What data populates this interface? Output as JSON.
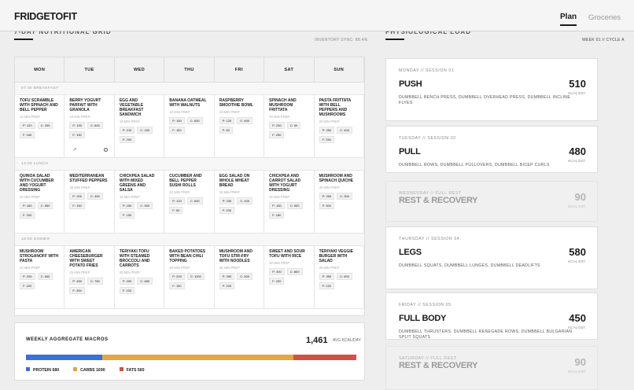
{
  "header": {
    "logo": "FRIDGETOFIT",
    "nav": [
      "Plan",
      "Groceries"
    ]
  },
  "grid_section": {
    "title": "7-DAY NUTRITIONAL GRID",
    "sync": "INVENTORY SYNC: 88.4%"
  },
  "days": [
    "MON",
    "TUE",
    "WED",
    "THU",
    "FRI",
    "SAT",
    "SUN"
  ],
  "meals": [
    {
      "label": "07:00 BREAKFAST",
      "cells": [
        {
          "name": "TOFU SCRAMBLE WITH SPINACH AND BELL PEPPER",
          "prep": "15 MIN PREP",
          "pills": [
            "P: 120",
            "C: 200",
            "F: 180"
          ]
        },
        {
          "name": "BERRY YOGURT PARFAIT WITH GRANOLA",
          "prep": "10 MIN PREP",
          "pills": [
            "P: 150",
            "C: 600",
            "F: 150"
          ]
        },
        {
          "name": "EGG AND VEGETABLE BREAKFAST SANDWICH",
          "prep": "15 MIN PREP",
          "pills": [
            "P: 210",
            "C: 200",
            "F: 200"
          ]
        },
        {
          "name": "BANANA OATMEAL WITH WALNUTS",
          "prep": "10 MIN PREP",
          "pills": [
            "P: 150",
            "C: 600",
            "F: 100"
          ]
        },
        {
          "name": "RASPBERRY SMOOTHIE BOWL",
          "prep": "10 MIN PREP",
          "pills": [
            "P: 120",
            "C: 600",
            "F: 50"
          ]
        },
        {
          "name": "SPINACH AND MUSHROOM FRITTATA",
          "prep": "20 MIN PREP",
          "pills": [
            "P: 250",
            "C: 90",
            "F: 250"
          ]
        },
        {
          "name": "PASTA FRITTATA WITH BELL PEPPERS AND MUSHROOMS",
          "prep": "20 MIN PREP",
          "pills": [
            "P: 250",
            "C: 400",
            "F: 250"
          ]
        }
      ]
    },
    {
      "label": "12:00 LUNCH",
      "cells": [
        {
          "name": "QUINOA SALAD WITH CUCUMBER AND YOGURT DRESSING",
          "prep": "20 MIN PREP",
          "pills": [
            "P: 160",
            "C: 550",
            "F: 200"
          ]
        },
        {
          "name": "MEDITERRANEAN STUFFED PEPPERS",
          "prep": "30 MIN PREP",
          "pills": [
            "P: 200",
            "C: 400",
            "F: 150"
          ]
        },
        {
          "name": "CHICKPEA SALAD WITH MIXED GREENS AND SALSA",
          "prep": "15 MIN PREP",
          "pills": [
            "P: 150",
            "C: 500",
            "F: 150"
          ]
        },
        {
          "name": "CUCUMBER AND BELL PEPPER SUSHI ROLLS",
          "prep": "20 MIN PREP",
          "pills": [
            "P: 120",
            "C: 600",
            "F: 50"
          ]
        },
        {
          "name": "EGG SALAD ON WHOLE WHEAT BREAD",
          "prep": "15 MIN PREP",
          "pills": [
            "P: 230",
            "C: 400",
            "F: 200"
          ]
        },
        {
          "name": "CHICKPEA AND CARROT SALAD WITH YOGURT DRESSING",
          "prep": "15 MIN PREP",
          "pills": [
            "P: 150",
            "C: 500",
            "F: 180"
          ]
        },
        {
          "name": "MUSHROOM AND SPINACH QUICHE",
          "prep": "40 MIN PREP",
          "pills": [
            "P: 250",
            "C: 300",
            "F: 300"
          ]
        }
      ]
    },
    {
      "label": "18:00 DINNER",
      "cells": [
        {
          "name": "MUSHROOM STROGANOFF WITH PASTA",
          "prep": "30 MIN PREP",
          "pills": [
            "P: 200",
            "C: 600",
            "F: 220"
          ]
        },
        {
          "name": "AMERICAN CHEESEBURGER WITH SWEET POTATO FRIES",
          "prep": "25 MIN PREP",
          "pills": [
            "P: 450",
            "C: 750",
            "F: 300"
          ]
        },
        {
          "name": "TERIYAKI TOFU WITH STEAMED BROCCOLI AND CARROTS",
          "prep": "25 MIN PREP",
          "pills": [
            "P: 200",
            "C: 650",
            "F: 220"
          ]
        },
        {
          "name": "BAKED POTATOES WITH BEAN CHILI TOPPING",
          "prep": "40 MIN PREP",
          "pills": [
            "P: 200",
            "C: 1000",
            "F: 150"
          ]
        },
        {
          "name": "MUSHROOM AND TOFU STIR-FRY WITH NOODLES",
          "prep": "25 MIN PREP",
          "pills": [
            "P: 300",
            "C: 600",
            "F: 200"
          ]
        },
        {
          "name": "SWEET AND SOUR TOFU WITH RICE",
          "prep": "30 MIN PREP",
          "pills": [
            "P: 300",
            "C: 800",
            "F: 200"
          ]
        },
        {
          "name": "TERIYAKI VEGGIE BURGER WITH SALAD",
          "prep": "30 MIN PREP",
          "pills": [
            "P: 350",
            "C: 800",
            "F: 220"
          ]
        }
      ]
    }
  ],
  "macros": {
    "title": "WEEKLY AGGREGATE MACROS",
    "avg_value": "1,461",
    "avg_label": "AVG KCAL/DAY",
    "legend": [
      {
        "label": "PROTEIN 680",
        "color": "#3b6fd9"
      },
      {
        "label": "CARBS 1690",
        "color": "#e1a83f"
      },
      {
        "label": "FATS 560",
        "color": "#d64e48"
      }
    ],
    "fractions": [
      0.23,
      0.58,
      0.19
    ]
  },
  "phys_section": {
    "title": "PHYSIOLOGICAL LOAD",
    "week": "WEEK 01 // CYCLE A"
  },
  "sessions": [
    {
      "tag": "MONDAY // SESSION 01",
      "name": "PUSH",
      "desc": "DUMBBELL BENCH PRESS, DUMBBELL OVERHEAD PRESS, DUMBBELL INCLINE FLYES",
      "kcal": "510",
      "kcal_label": "KCAL EST."
    },
    {
      "tag": "TUESDAY // SESSION 02",
      "name": "PULL",
      "desc": "DUMBBELL ROWS, DUMBBELL PULLOVERS, DUMBBELL BICEP CURLS",
      "kcal": "480",
      "kcal_label": "KCAL EST."
    },
    {
      "tag": "WEDNESDAY // FULL REST",
      "name": "REST & RECOVERY",
      "desc": "",
      "kcal": "90",
      "kcal_label": "KCAL EST."
    },
    {
      "tag": "THURSDAY // SESSION 04",
      "name": "LEGS",
      "desc": "DUMBBELL SQUATS, DUMBBELL LUNGES, DUMBBELL DEADLIFTS",
      "kcal": "580",
      "kcal_label": "KCAL EST."
    },
    {
      "tag": "FRIDAY // SESSION 05",
      "name": "FULL BODY",
      "desc": "DUMBBELL THRUSTERS, DUMBBELL RENEGADE ROWS, DUMBBELL BULGARIAN SPLIT SQUATS",
      "kcal": "450",
      "kcal_label": "KCAL EST."
    },
    {
      "tag": "SATURDAY // FULL REST",
      "name": "REST & RECOVERY",
      "desc": "",
      "kcal": "90",
      "kcal_label": "KCAL EST."
    }
  ]
}
